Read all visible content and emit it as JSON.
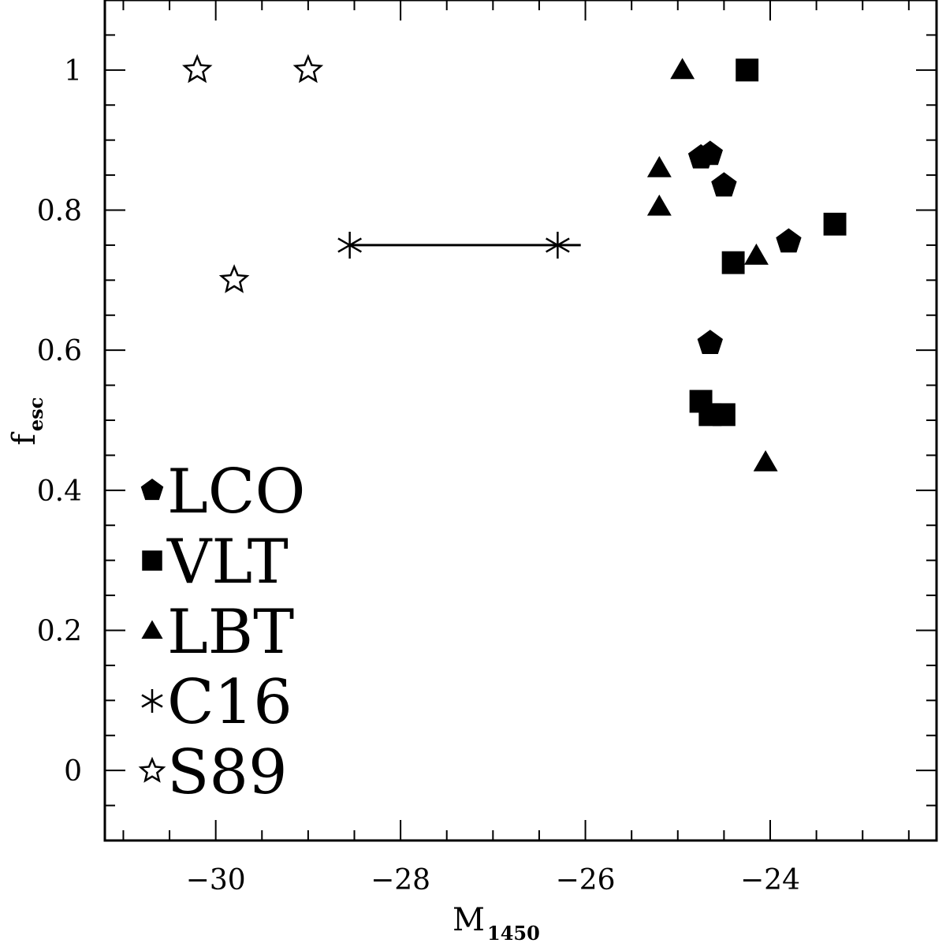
{
  "chart_data": {
    "type": "scatter",
    "xlabel": "M",
    "xlabel_sub": "1450",
    "ylabel": "f",
    "ylabel_sub": "esc",
    "xlim": [
      -31.2,
      -22.2
    ],
    "ylim": [
      -0.1,
      1.1
    ],
    "x_ticks": [
      -30,
      -28,
      -26,
      -24
    ],
    "x_tick_labels": [
      "−30",
      "−28",
      "−26",
      "−24"
    ],
    "y_ticks": [
      0,
      0.2,
      0.4,
      0.6,
      0.8,
      1
    ],
    "y_tick_labels": [
      "0",
      "0.2",
      "0.4",
      "0.6",
      "0.8",
      "1"
    ],
    "grid": false,
    "legend_position": "bottom-left",
    "series": [
      {
        "name": "LCO",
        "marker": "pentagon",
        "filled": true,
        "points": [
          {
            "x": -24.75,
            "y": 0.875
          },
          {
            "x": -24.65,
            "y": 0.88
          },
          {
            "x": -24.5,
            "y": 0.835
          },
          {
            "x": -24.65,
            "y": 0.61
          },
          {
            "x": -23.8,
            "y": 0.755
          }
        ]
      },
      {
        "name": "VLT",
        "marker": "square",
        "filled": true,
        "points": [
          {
            "x": -24.25,
            "y": 1.0
          },
          {
            "x": -23.3,
            "y": 0.78
          },
          {
            "x": -24.4,
            "y": 0.725
          },
          {
            "x": -24.75,
            "y": 0.527
          },
          {
            "x": -24.65,
            "y": 0.508
          },
          {
            "x": -24.5,
            "y": 0.508
          }
        ]
      },
      {
        "name": "LBT",
        "marker": "triangle",
        "filled": true,
        "points": [
          {
            "x": -24.95,
            "y": 1.0
          },
          {
            "x": -25.2,
            "y": 0.86
          },
          {
            "x": -25.2,
            "y": 0.805
          },
          {
            "x": -24.15,
            "y": 0.735
          },
          {
            "x": -24.05,
            "y": 0.44
          }
        ]
      },
      {
        "name": "C16",
        "marker": "asterisk",
        "filled": false,
        "points": [
          {
            "x": -28.55,
            "y": 0.75
          },
          {
            "x": -26.3,
            "y": 0.75
          }
        ],
        "range": {
          "x_from": -28.55,
          "x_to": -26.05,
          "y": 0.75
        }
      },
      {
        "name": "S89",
        "marker": "star",
        "filled": false,
        "points": [
          {
            "x": -30.2,
            "y": 1.0
          },
          {
            "x": -29.0,
            "y": 1.0
          },
          {
            "x": -29.8,
            "y": 0.7
          }
        ]
      }
    ]
  }
}
